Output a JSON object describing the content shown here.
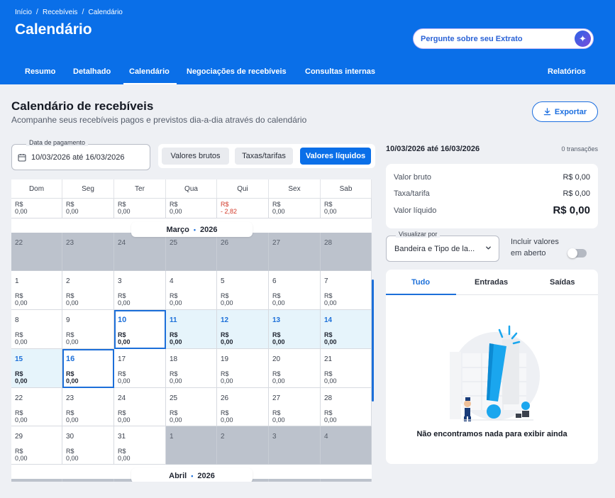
{
  "breadcrumb": [
    "Início",
    "Recebíveis",
    "Calendário"
  ],
  "page_title": "Calendário",
  "ask_placeholder": "Pergunte sobre seu Extrato",
  "nav": {
    "items": [
      "Resumo",
      "Detalhado",
      "Calendário",
      "Negociações de recebíveis",
      "Consultas internas"
    ],
    "right_item": "Relatórios",
    "active": "Calendário"
  },
  "section": {
    "title": "Calendário de recebíveis",
    "subtitle": "Acompanhe seus recebíveis pagos e previstos dia-a-dia através do calendário",
    "export_label": "Exportar"
  },
  "filters": {
    "date_label": "Data de pagamento",
    "date_value": "10/03/2026 até 16/03/2026",
    "value_types": [
      "Valores brutos",
      "Taxas/tarifas",
      "Valores líquidos"
    ],
    "active_value_type": "Valores líquidos"
  },
  "calendar": {
    "weekdays": [
      "Dom",
      "Seg",
      "Ter",
      "Qua",
      "Qui",
      "Sex",
      "Sab"
    ],
    "top_row": [
      {
        "c": "R$",
        "v": "0,00"
      },
      {
        "c": "R$",
        "v": "0,00"
      },
      {
        "c": "R$",
        "v": "0,00"
      },
      {
        "c": "R$",
        "v": "0,00"
      },
      {
        "c": "R$",
        "v": "- 2,82",
        "neg": true
      },
      {
        "c": "R$",
        "v": "0,00"
      },
      {
        "c": "R$",
        "v": "0,00"
      }
    ],
    "month_label": "Março",
    "month_year": "2026",
    "next_month_label": "Abril",
    "next_month_year": "2026",
    "weeks": [
      [
        {
          "d": "22",
          "s": "grey"
        },
        {
          "d": "23",
          "s": "grey"
        },
        {
          "d": "24",
          "s": "grey"
        },
        {
          "d": "25",
          "s": "grey"
        },
        {
          "d": "26",
          "s": "grey"
        },
        {
          "d": "27",
          "s": "grey"
        },
        {
          "d": "28",
          "s": "grey"
        }
      ],
      [
        {
          "d": "1",
          "c": "R$",
          "v": "0,00"
        },
        {
          "d": "2",
          "c": "R$",
          "v": "0,00"
        },
        {
          "d": "3",
          "c": "R$",
          "v": "0,00"
        },
        {
          "d": "4",
          "c": "R$",
          "v": "0,00"
        },
        {
          "d": "5",
          "c": "R$",
          "v": "0,00"
        },
        {
          "d": "6",
          "c": "R$",
          "v": "0,00"
        },
        {
          "d": "7",
          "c": "R$",
          "v": "0,00"
        }
      ],
      [
        {
          "d": "8",
          "c": "R$",
          "v": "0,00"
        },
        {
          "d": "9",
          "c": "R$",
          "v": "0,00"
        },
        {
          "d": "10",
          "c": "R$",
          "v": "0,00",
          "s": "sel"
        },
        {
          "d": "11",
          "c": "R$",
          "v": "0,00",
          "s": "light"
        },
        {
          "d": "12",
          "c": "R$",
          "v": "0,00",
          "s": "light"
        },
        {
          "d": "13",
          "c": "R$",
          "v": "0,00",
          "s": "light"
        },
        {
          "d": "14",
          "c": "R$",
          "v": "0,00",
          "s": "light"
        }
      ],
      [
        {
          "d": "15",
          "c": "R$",
          "v": "0,00",
          "s": "light"
        },
        {
          "d": "16",
          "c": "R$",
          "v": "0,00",
          "s": "sel"
        },
        {
          "d": "17",
          "c": "R$",
          "v": "0,00"
        },
        {
          "d": "18",
          "c": "R$",
          "v": "0,00"
        },
        {
          "d": "19",
          "c": "R$",
          "v": "0,00"
        },
        {
          "d": "20",
          "c": "R$",
          "v": "0,00"
        },
        {
          "d": "21",
          "c": "R$",
          "v": "0,00"
        }
      ],
      [
        {
          "d": "22",
          "c": "R$",
          "v": "0,00"
        },
        {
          "d": "23",
          "c": "R$",
          "v": "0,00"
        },
        {
          "d": "24",
          "c": "R$",
          "v": "0,00"
        },
        {
          "d": "25",
          "c": "R$",
          "v": "0,00"
        },
        {
          "d": "26",
          "c": "R$",
          "v": "0,00"
        },
        {
          "d": "27",
          "c": "R$",
          "v": "0,00"
        },
        {
          "d": "28",
          "c": "R$",
          "v": "0,00"
        }
      ],
      [
        {
          "d": "29",
          "c": "R$",
          "v": "0,00"
        },
        {
          "d": "30",
          "c": "R$",
          "v": "0,00"
        },
        {
          "d": "31",
          "c": "R$",
          "v": "0,00"
        },
        {
          "d": "1",
          "s": "grey"
        },
        {
          "d": "2",
          "s": "grey"
        },
        {
          "d": "3",
          "s": "grey"
        },
        {
          "d": "4",
          "s": "grey"
        }
      ]
    ]
  },
  "panel": {
    "range": "10/03/2026 até 16/03/2026",
    "tx_count": "0 transações",
    "summary": [
      {
        "label": "Valor bruto",
        "value": "R$ 0,00"
      },
      {
        "label": "Taxa/tarifa",
        "value": "R$ 0,00"
      },
      {
        "label": "Valor líquido",
        "value": "R$ 0,00"
      }
    ],
    "view_label": "Visualizar por",
    "view_value": "Bandeira e Tipo de la...",
    "include_open_label": "Incluir valores em aberto",
    "tabs": [
      "Tudo",
      "Entradas",
      "Saídas"
    ],
    "active_tab": "Tudo",
    "empty_text": "Não encontramos nada para exibir ainda"
  },
  "colors": {
    "brand": "#0a6fe8",
    "selected_range": "#e6f4fb",
    "negative": "#d23b2b",
    "outside_month": "#bcc2cc"
  }
}
